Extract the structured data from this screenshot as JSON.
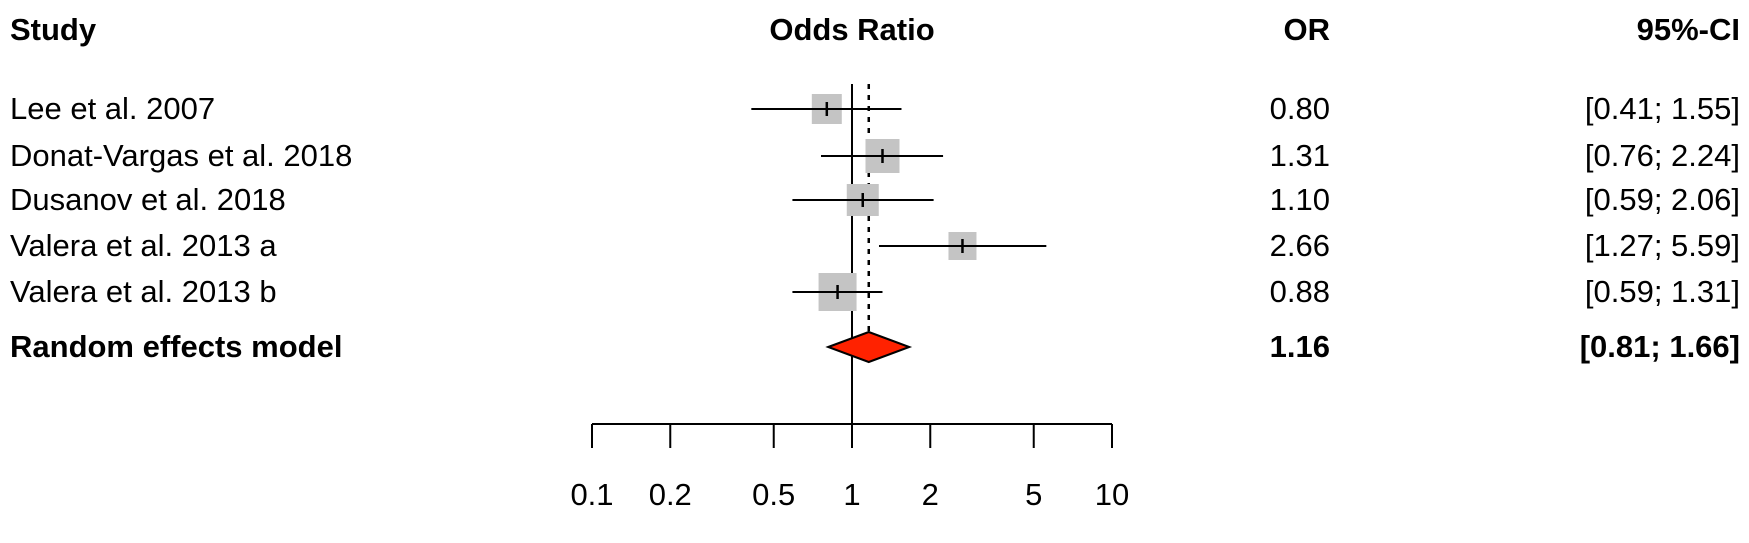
{
  "header": {
    "study_label": "Study",
    "plot_label": "Odds Ratio",
    "or_label": "OR",
    "ci_label": "95%-CI"
  },
  "studies": [
    {
      "name": "Lee et al. 2007",
      "or": "0.80",
      "ci": "[0.41; 1.55]"
    },
    {
      "name": "Donat-Vargas et al. 2018",
      "or": "1.31",
      "ci": "[0.76; 2.24]"
    },
    {
      "name": "Dusanov et al. 2018",
      "or": "1.10",
      "ci": "[0.59; 2.06]"
    },
    {
      "name": "Valera et al. 2013 a",
      "or": "2.66",
      "ci": "[1.27; 5.59]"
    },
    {
      "name": "Valera et al. 2013 b",
      "or": "0.88",
      "ci": "[0.59; 1.31]"
    }
  ],
  "summary": {
    "name": "Random effects model",
    "or": "1.16",
    "ci": "[0.81; 1.66]"
  },
  "axis": {
    "ticks": [
      "0.1",
      "0.2",
      "0.5",
      "1",
      "2",
      "5",
      "10"
    ]
  },
  "colors": {
    "square": "#c4c4c4",
    "diamond": "#ff2200",
    "line": "#000000"
  },
  "chart_data": {
    "type": "forest",
    "title": "Odds Ratio",
    "xlabel": "Odds Ratio",
    "xscale": "log",
    "xlim": [
      0.1,
      10
    ],
    "xticks": [
      0.1,
      0.2,
      0.5,
      1,
      2,
      5,
      10
    ],
    "reference_line": 1,
    "summary_line": 1.16,
    "columns": [
      "Study",
      "OR",
      "95%-CI"
    ],
    "studies": [
      {
        "study": "Lee et al. 2007",
        "or": 0.8,
        "lower": 0.41,
        "upper": 1.55,
        "square_size": 30
      },
      {
        "study": "Donat-Vargas et al. 2018",
        "or": 1.31,
        "lower": 0.76,
        "upper": 2.24,
        "square_size": 34
      },
      {
        "study": "Dusanov et al. 2018",
        "or": 1.1,
        "lower": 0.59,
        "upper": 2.06,
        "square_size": 32
      },
      {
        "study": "Valera et al. 2013 a",
        "or": 2.66,
        "lower": 1.27,
        "upper": 5.59,
        "square_size": 28
      },
      {
        "study": "Valera et al. 2013 b",
        "or": 0.88,
        "lower": 0.59,
        "upper": 1.31,
        "square_size": 38
      }
    ],
    "summary": {
      "label": "Random effects model",
      "or": 1.16,
      "lower": 0.81,
      "upper": 1.66
    }
  }
}
